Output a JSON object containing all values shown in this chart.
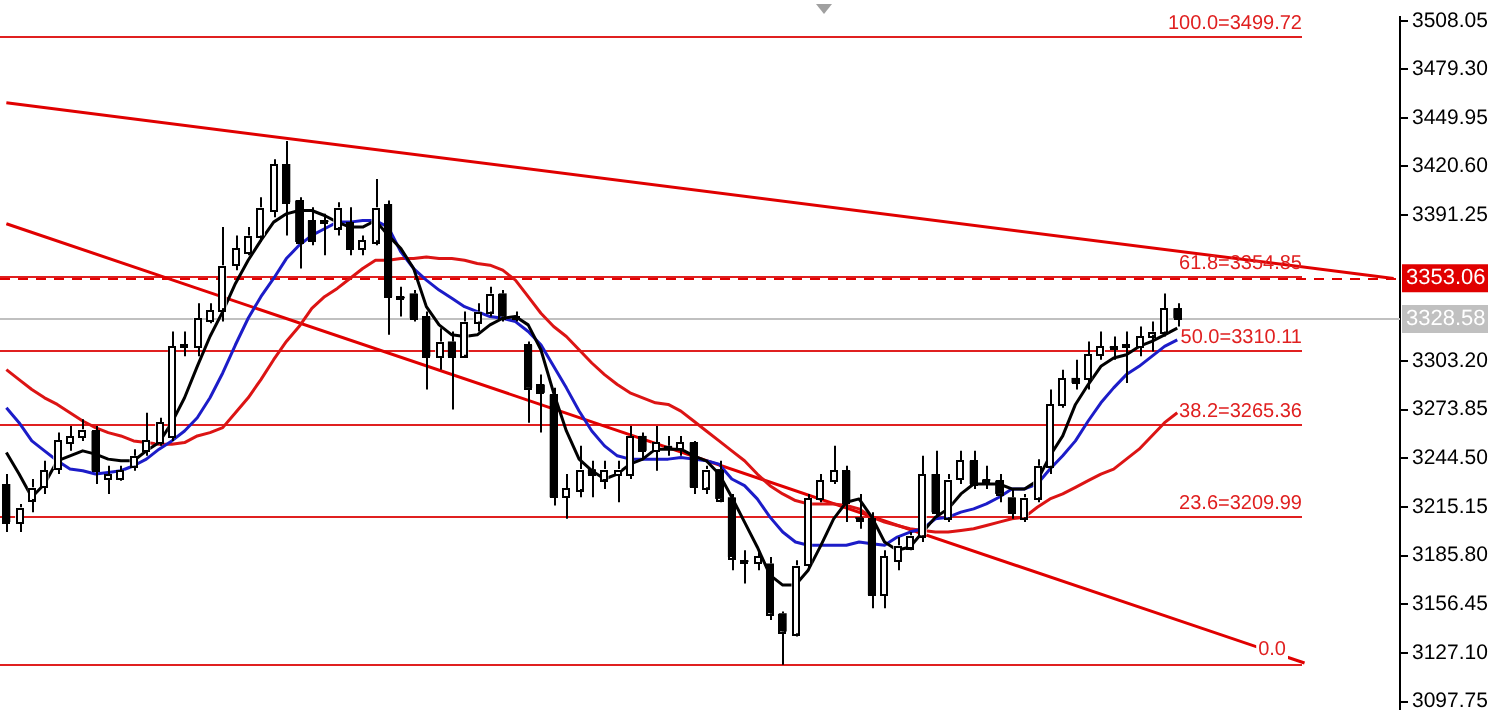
{
  "chart_data": {
    "type": "candlestick",
    "color": "#000000",
    "categories": [
      null,
      null,
      null,
      null,
      null,
      null,
      null,
      null,
      null,
      null,
      null,
      null,
      null,
      null,
      null,
      null,
      null,
      null,
      null,
      null,
      null,
      null,
      null,
      null,
      null,
      null,
      null,
      null,
      null,
      null,
      null,
      null,
      null,
      null,
      null,
      null,
      null,
      null,
      null,
      null,
      null,
      null,
      null,
      null,
      null,
      null,
      null,
      null,
      null,
      null,
      null,
      null,
      null,
      null,
      null,
      null,
      null,
      null,
      null,
      null,
      null,
      null,
      null,
      null,
      null,
      null,
      null,
      null,
      null,
      null,
      null,
      null,
      null,
      null,
      null,
      null,
      null,
      null,
      null,
      null,
      null,
      null,
      null,
      null,
      null,
      null,
      null,
      null,
      null,
      null,
      null,
      null,
      null,
      null,
      null,
      null,
      null,
      null,
      null,
      null,
      null,
      null,
      null,
      null,
      null,
      null,
      null,
      null,
      null,
      null
    ],
    "ohlc": [
      [
        3229,
        3235,
        3200,
        3206
      ],
      [
        3206,
        3217,
        3200,
        3215
      ],
      [
        3220,
        3232,
        3212,
        3227
      ],
      [
        3227,
        3243,
        3223,
        3237
      ],
      [
        3238,
        3260,
        3235,
        3255
      ],
      [
        3254,
        3264,
        3249,
        3258
      ],
      [
        3258,
        3268,
        3255,
        3262
      ],
      [
        3261,
        3264,
        3229,
        3237
      ],
      [
        3232,
        3240,
        3223,
        3235
      ],
      [
        3232,
        3240,
        3231,
        3237
      ],
      [
        3240,
        3250,
        3237,
        3246
      ],
      [
        3249,
        3272,
        3246,
        3255
      ],
      [
        3254,
        3269,
        3252,
        3266
      ],
      [
        3258,
        3321,
        3255,
        3312
      ],
      [
        3312,
        3321,
        3306,
        3313
      ],
      [
        3312,
        3338,
        3306,
        3329
      ],
      [
        3328,
        3338,
        3326,
        3334
      ],
      [
        3335,
        3384,
        3327,
        3361
      ],
      [
        3361,
        3379,
        3358,
        3371
      ],
      [
        3369,
        3384,
        3367,
        3379
      ],
      [
        3379,
        3402,
        3375,
        3396
      ],
      [
        3394,
        3425,
        3390,
        3422
      ],
      [
        3422,
        3436,
        3379,
        3399
      ],
      [
        3400,
        3402,
        3359,
        3375
      ],
      [
        3388,
        3396,
        3373,
        3376
      ],
      [
        3388,
        3392,
        3367,
        3387
      ],
      [
        3384,
        3399,
        3379,
        3396
      ],
      [
        3387,
        3396,
        3367,
        3371
      ],
      [
        3371,
        3379,
        3367,
        3376
      ],
      [
        3376,
        3413,
        3373,
        3396
      ],
      [
        3398,
        3400,
        3319,
        3342
      ],
      [
        3342,
        3348,
        3330,
        3341
      ],
      [
        3344,
        3346,
        3327,
        3329
      ],
      [
        3330,
        3333,
        3286,
        3306
      ],
      [
        3306,
        3323,
        3298,
        3315
      ],
      [
        3315,
        3321,
        3274,
        3306
      ],
      [
        3307,
        3333,
        3306,
        3327
      ],
      [
        3327,
        3338,
        3321,
        3333
      ],
      [
        3333,
        3348,
        3330,
        3344
      ],
      [
        3344,
        3346,
        3327,
        3330
      ],
      [
        3330,
        3333,
        3327,
        3329
      ],
      [
        3313,
        3315,
        3266,
        3287
      ],
      [
        3289,
        3295,
        3260,
        3284
      ],
      [
        3283,
        3287,
        3216,
        3221
      ],
      [
        3221,
        3235,
        3208,
        3226
      ],
      [
        3226,
        3252,
        3221,
        3238
      ],
      [
        3238,
        3243,
        3221,
        3235
      ],
      [
        3232,
        3243,
        3226,
        3238
      ],
      [
        3235,
        3243,
        3218,
        3238
      ],
      [
        3235,
        3264,
        3232,
        3258
      ],
      [
        3258,
        3260,
        3244,
        3249
      ],
      [
        3249,
        3264,
        3237,
        3254
      ],
      [
        3252,
        3258,
        3246,
        3251
      ],
      [
        3250,
        3258,
        3246,
        3254
      ],
      [
        3254,
        3255,
        3223,
        3227
      ],
      [
        3227,
        3240,
        3223,
        3238
      ],
      [
        3238,
        3243,
        3218,
        3220
      ],
      [
        3221,
        3223,
        3177,
        3185
      ],
      [
        3183,
        3189,
        3169,
        3182
      ],
      [
        3181,
        3189,
        3177,
        3185
      ],
      [
        3181,
        3185,
        3147,
        3151
      ],
      [
        3151,
        3152,
        3120,
        3140
      ],
      [
        3139,
        3183,
        3137,
        3180
      ],
      [
        3180,
        3223,
        3177,
        3220
      ],
      [
        3220,
        3235,
        3218,
        3231
      ],
      [
        3231,
        3252,
        3229,
        3237
      ],
      [
        3237,
        3240,
        3206,
        3218
      ],
      [
        3209,
        3223,
        3202,
        3208
      ],
      [
        3208,
        3212,
        3154,
        3162
      ],
      [
        3162,
        3189,
        3154,
        3185
      ],
      [
        3183,
        3197,
        3177,
        3192
      ],
      [
        3191,
        3200,
        3189,
        3198
      ],
      [
        3198,
        3246,
        3194,
        3235
      ],
      [
        3235,
        3249,
        3209,
        3212
      ],
      [
        3209,
        3235,
        3206,
        3232
      ],
      [
        3232,
        3249,
        3229,
        3243
      ],
      [
        3243,
        3249,
        3226,
        3229
      ],
      [
        3232,
        3240,
        3226,
        3231
      ],
      [
        3231,
        3235,
        3218,
        3223
      ],
      [
        3221,
        3226,
        3208,
        3212
      ],
      [
        3209,
        3223,
        3206,
        3221
      ],
      [
        3221,
        3244,
        3218,
        3240
      ],
      [
        3240,
        3286,
        3235,
        3277
      ],
      [
        3277,
        3298,
        3275,
        3293
      ],
      [
        3293,
        3304,
        3286,
        3290
      ],
      [
        3292,
        3315,
        3286,
        3307
      ],
      [
        3307,
        3321,
        3304,
        3312
      ],
      [
        3312,
        3318,
        3304,
        3311
      ],
      [
        3312,
        3321,
        3290,
        3313
      ],
      [
        3312,
        3324,
        3306,
        3318
      ],
      [
        3319,
        3327,
        3309,
        3321
      ],
      [
        3321,
        3344,
        3318,
        3335
      ],
      [
        3335,
        3338,
        3324,
        3329
      ],
      null,
      null,
      null,
      null,
      null,
      null,
      null,
      null,
      null,
      null,
      null,
      null,
      null,
      null,
      null,
      null,
      null
    ],
    "series": [
      {
        "type": "line",
        "color": "#000000",
        "values": [
          3248,
          3235,
          3221,
          3229,
          3243,
          3246,
          3249,
          3247,
          3244,
          3243,
          3243,
          3249,
          3254,
          3266,
          3281,
          3300,
          3318,
          3333,
          3350,
          3364,
          3376,
          3387,
          3392,
          3394,
          3394,
          3391,
          3387,
          3384,
          3384,
          3388,
          3379,
          3371,
          3359,
          3336,
          3325,
          3319,
          3318,
          3319,
          3325,
          3329,
          3330,
          3325,
          3310,
          3284,
          3261,
          3244,
          3237,
          3232,
          3235,
          3241,
          3244,
          3250,
          3250,
          3250,
          3246,
          3243,
          3235,
          3221,
          3206,
          3191,
          3174,
          3168,
          3168,
          3177,
          3192,
          3208,
          3218,
          3220,
          3209,
          3194,
          3189,
          3191,
          3200,
          3209,
          3214,
          3223,
          3229,
          3229,
          3229,
          3226,
          3226,
          3231,
          3246,
          3258,
          3277,
          3289,
          3300,
          3305,
          3307,
          3312,
          3315,
          3319,
          3323,
          null,
          null,
          null,
          null,
          null,
          null,
          null,
          null,
          null,
          null,
          null,
          null,
          null,
          null,
          null,
          null,
          null
        ]
      },
      {
        "type": "line",
        "color": "#1c1cc8",
        "values": [
          3275,
          3266,
          3255,
          3249,
          3243,
          3238,
          3237,
          3235,
          3236,
          3237,
          3240,
          3244,
          3250,
          3255,
          3261,
          3269,
          3281,
          3296,
          3313,
          3329,
          3342,
          3353,
          3365,
          3373,
          3379,
          3383,
          3387,
          3387,
          3388,
          3388,
          3384,
          3369,
          3359,
          3352,
          3346,
          3341,
          3336,
          3333,
          3330,
          3329,
          3327,
          3321,
          3313,
          3300,
          3287,
          3273,
          3261,
          3252,
          3246,
          3244,
          3244,
          3244,
          3244,
          3245,
          3244,
          3243,
          3241,
          3232,
          3228,
          3220,
          3209,
          3200,
          3194,
          3192,
          3192,
          3192,
          3192,
          3194,
          3193,
          3192,
          3197,
          3200,
          3202,
          3208,
          3209,
          3212,
          3214,
          3217,
          3221,
          3226,
          3226,
          3229,
          3238,
          3246,
          3255,
          3267,
          3278,
          3287,
          3295,
          3300,
          3306,
          3312,
          3316,
          null,
          null,
          null,
          null,
          null,
          null,
          null,
          null,
          null,
          null,
          null,
          null,
          null,
          null,
          null,
          null,
          null
        ]
      },
      {
        "type": "line",
        "color": "#dc1414",
        "values": [
          3298,
          3292,
          3286,
          3281,
          3277,
          3272,
          3267,
          3263,
          3260,
          3258,
          3255,
          3254,
          3253,
          3253,
          3254,
          3258,
          3260,
          3263,
          3272,
          3281,
          3292,
          3304,
          3315,
          3324,
          3335,
          3342,
          3347,
          3353,
          3359,
          3364,
          3364,
          3365,
          3365,
          3366,
          3365,
          3365,
          3364,
          3362,
          3361,
          3358,
          3352,
          3342,
          3332,
          3324,
          3318,
          3310,
          3302,
          3295,
          3289,
          3284,
          3281,
          3278,
          3277,
          3273,
          3267,
          3261,
          3255,
          3249,
          3243,
          3235,
          3228,
          3223,
          3219,
          3217,
          3217,
          3217,
          3216,
          3214,
          3209,
          3206,
          3204,
          3202,
          3201,
          3200,
          3200,
          3201,
          3202,
          3204,
          3206,
          3208,
          3209,
          3215,
          3220,
          3223,
          3227,
          3231,
          3235,
          3238,
          3244,
          3250,
          3258,
          3266,
          3272,
          null,
          null,
          null,
          null,
          null,
          null,
          null,
          null,
          null,
          null,
          null,
          null,
          null,
          null,
          null,
          null,
          null
        ]
      },
      {
        "type": "line",
        "color": "#e00000",
        "values": [
          3459,
          null,
          null,
          null,
          null,
          null,
          null,
          null,
          null,
          null,
          null,
          null,
          null,
          null,
          null,
          null,
          null,
          null,
          null,
          null,
          null,
          null,
          null,
          null,
          null,
          null,
          null,
          null,
          null,
          null,
          null,
          null,
          null,
          null,
          null,
          null,
          null,
          null,
          null,
          null,
          null,
          null,
          null,
          null,
          null,
          null,
          null,
          null,
          null,
          null,
          null,
          null,
          null,
          null,
          null,
          null,
          null,
          null,
          null,
          null,
          null,
          null,
          null,
          null,
          null,
          null,
          null,
          null,
          null,
          null,
          null,
          null,
          null,
          null,
          null,
          null,
          null,
          null,
          null,
          null,
          null,
          null,
          null,
          null,
          null,
          null,
          null,
          null,
          null,
          null,
          null,
          null,
          null,
          null,
          null,
          null,
          null,
          null,
          null,
          null,
          null,
          null,
          null,
          null,
          null,
          null,
          null,
          null,
          null,
          3353
        ]
      },
      {
        "type": "line",
        "color": "#e00000",
        "values": [
          3386,
          null,
          null,
          null,
          null,
          null,
          null,
          null,
          null,
          null,
          null,
          null,
          null,
          null,
          null,
          null,
          null,
          null,
          null,
          null,
          null,
          null,
          null,
          null,
          null,
          null,
          null,
          null,
          null,
          null,
          null,
          null,
          null,
          null,
          null,
          null,
          null,
          null,
          null,
          null,
          null,
          null,
          null,
          null,
          null,
          null,
          null,
          null,
          null,
          null,
          null,
          null,
          null,
          null,
          null,
          null,
          null,
          null,
          null,
          null,
          null,
          null,
          null,
          null,
          null,
          null,
          null,
          null,
          null,
          null,
          null,
          null,
          null,
          null,
          null,
          null,
          null,
          null,
          null,
          null,
          null,
          null,
          null,
          null,
          null,
          null,
          null,
          null,
          null,
          null,
          null,
          null,
          null,
          null,
          null,
          null,
          null,
          null,
          null,
          null,
          null,
          null,
          3121,
          null,
          null,
          null,
          null,
          null,
          null,
          null
        ]
      }
    ],
    "ylim": [
      3093,
      3511
    ],
    "yticks": [
      {
        "value": 3508.05,
        "label": "3508.05"
      },
      {
        "value": 3479.3,
        "label": "3479.30"
      },
      {
        "value": 3449.95,
        "label": "3449.95"
      },
      {
        "value": 3420.6,
        "label": "3420.60"
      },
      {
        "value": 3391.25,
        "label": "3391.25"
      },
      {
        "value": 3303.2,
        "label": "3303.20"
      },
      {
        "value": 3273.85,
        "label": "3273.85"
      },
      {
        "value": 3244.5,
        "label": "3244.50"
      },
      {
        "value": 3215.15,
        "label": "3215.15"
      },
      {
        "value": 3185.8,
        "label": "3185.80"
      },
      {
        "value": 3156.45,
        "label": "3156.45"
      },
      {
        "value": 3127.1,
        "label": "3127.10"
      },
      {
        "value": 3097.75,
        "label": "3097.75"
      }
    ],
    "ref_lines": [
      {
        "axis": "y",
        "value": 3499.72,
        "label": "100.0=3499.72",
        "color": "#e02020"
      },
      {
        "axis": "y",
        "value": 3354.85,
        "label": "61.8=3354.85",
        "color": "#e02020"
      },
      {
        "axis": "y",
        "value": 3310.11,
        "label": "50.0=3310.11",
        "color": "#e02020"
      },
      {
        "axis": "y",
        "value": 3265.36,
        "label": "38.2=3265.36",
        "color": "#e02020"
      },
      {
        "axis": "y",
        "value": 3209.99,
        "label": "23.6=3209.99",
        "color": "#e02020"
      },
      {
        "axis": "y",
        "value": 3120.48,
        "color": "#e02020"
      },
      {
        "axis": "y",
        "value": 3353.06,
        "label": "3353.06",
        "color": "#e00000",
        "line_style": "dashed"
      },
      {
        "axis": "y",
        "value": 3328.58,
        "label": "3328.58",
        "color": "#c0c0c0",
        "line_style": "solid"
      }
    ],
    "annotations": [
      {
        "text": "0.0",
        "y": 3120.48
      }
    ],
    "colors": [
      "#000000",
      "#ffffff",
      "#ffffff",
      "#ffffff",
      "#ffffff",
      "#ffffff",
      "#ffffff",
      "#000000",
      "#ffffff",
      "#ffffff",
      "#ffffff",
      "#ffffff",
      "#ffffff",
      "#ffffff",
      "#ffffff",
      "#ffffff",
      "#ffffff",
      "#ffffff",
      "#ffffff",
      "#ffffff",
      "#ffffff",
      "#ffffff",
      "#000000",
      "#000000",
      "#000000",
      "#000000",
      "#ffffff",
      "#000000",
      "#ffffff",
      "#ffffff",
      "#000000",
      "#000000",
      "#000000",
      "#000000",
      "#ffffff",
      "#000000",
      "#ffffff",
      "#ffffff",
      "#ffffff",
      "#000000",
      "#000000",
      "#000000",
      "#000000",
      "#000000",
      "#ffffff",
      "#ffffff",
      "#000000",
      "#ffffff",
      "#ffffff",
      "#ffffff",
      "#000000",
      "#ffffff",
      "#000000",
      "#ffffff",
      "#000000",
      "#ffffff",
      "#000000",
      "#000000",
      "#000000",
      "#ffffff",
      "#000000",
      "#000000",
      "#ffffff",
      "#ffffff",
      "#ffffff",
      "#ffffff",
      "#000000",
      "#000000",
      "#000000",
      "#ffffff",
      "#ffffff",
      "#ffffff",
      "#ffffff",
      "#000000",
      "#ffffff",
      "#ffffff",
      "#000000",
      "#000000",
      "#000000",
      "#000000",
      "#ffffff",
      "#ffffff",
      "#ffffff",
      "#ffffff",
      "#000000",
      "#ffffff",
      "#ffffff",
      "#000000",
      "#ffffff",
      "#ffffff",
      "#ffffff",
      "#ffffff",
      "#000000",
      null,
      null,
      null,
      null,
      null,
      null,
      null,
      null,
      null,
      null,
      null,
      null,
      null,
      null,
      null,
      null,
      null
    ],
    "legend": false
  }
}
